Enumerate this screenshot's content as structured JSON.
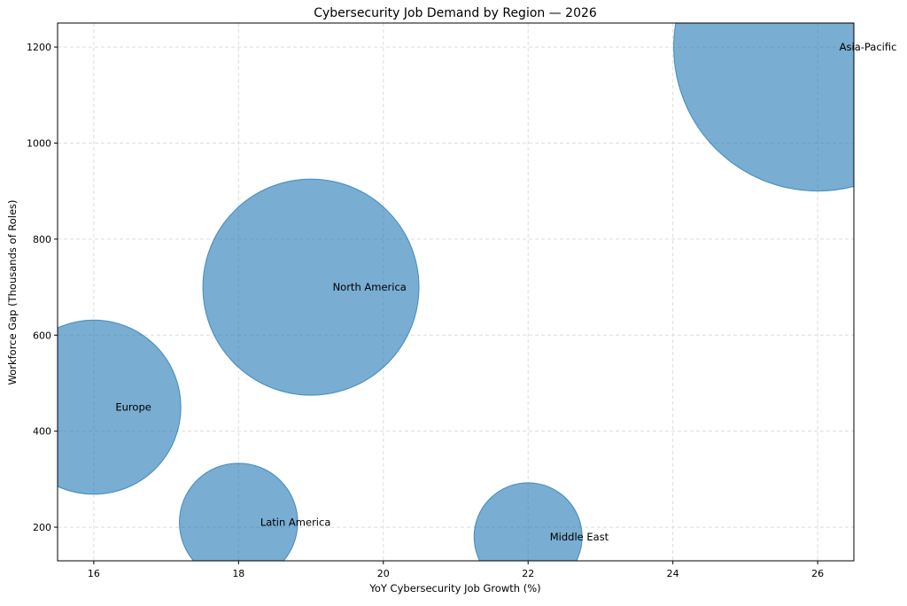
{
  "chart_data": {
    "type": "scatter",
    "subtype": "bubble",
    "title": "Cybersecurity Job Demand by Region — 2026",
    "xlabel": "YoY Cybersecurity Job Growth (%)",
    "ylabel": "Workforce Gap (Thousands of Roles)",
    "xlim": [
      15.5,
      26.5
    ],
    "ylim": [
      130,
      1250
    ],
    "xticks": [
      16,
      18,
      20,
      22,
      24,
      26
    ],
    "yticks": [
      200,
      400,
      600,
      800,
      1000,
      1200
    ],
    "grid": true,
    "bubble_color": "#1f77b4",
    "bubble_alpha": 0.6,
    "points": [
      {
        "label": "Europe",
        "x": 16,
        "y": 450,
        "relative_size": 2.6
      },
      {
        "label": "Latin America",
        "x": 18,
        "y": 210,
        "relative_size": 1.2
      },
      {
        "label": "North America",
        "x": 19,
        "y": 700,
        "relative_size": 4.0
      },
      {
        "label": "Middle East",
        "x": 22,
        "y": 180,
        "relative_size": 1.0
      },
      {
        "label": "Asia-Pacific",
        "x": 26,
        "y": 1200,
        "relative_size": 7.1
      }
    ]
  }
}
